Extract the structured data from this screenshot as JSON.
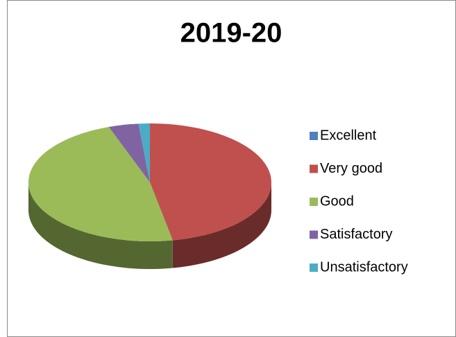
{
  "chart_data": {
    "type": "pie3d",
    "title": "2019-20",
    "categories": [
      "Excellent",
      "Very good",
      "Good",
      "Satisfactory",
      "Unsatisfactory"
    ],
    "values": [
      0,
      47,
      47.5,
      4,
      1.5
    ],
    "colors": [
      "#4f81bd",
      "#c0504d",
      "#9bbb59",
      "#8064a2",
      "#4bacc6"
    ],
    "legend": "right"
  }
}
